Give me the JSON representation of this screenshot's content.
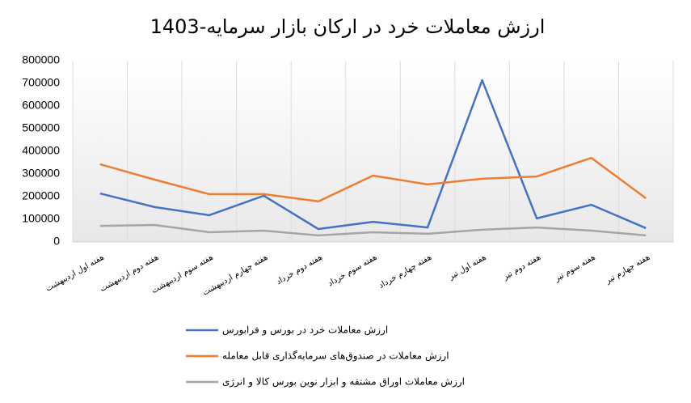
{
  "chart_data": {
    "type": "line",
    "title": "ارزش معاملات خرد در ارکان بازار سرمایه-1403",
    "categories": [
      "هفته اول اردیبهشت",
      "هفته دوم اردیبهشت",
      "هفته سوم اردیبهشت",
      "هفته چهارم اردیبهشت",
      "هفته دوم خرداد",
      "هفته سوم خرداد",
      "هفته چهارم خرداد",
      "هفته اول تیر",
      "هفته دوم تیر",
      "هفته سوم تیر",
      "هفته چهارم تیر"
    ],
    "series": [
      {
        "name": "ارزش معاملات خرد در بورس و فرابورس",
        "color": "#4472c4",
        "values": [
          214000,
          154000,
          118000,
          204000,
          57000,
          89000,
          64000,
          714000,
          104000,
          164000,
          61000
        ]
      },
      {
        "name": "ارزش معاملات در صندوق‌های سرمایه‌گذاری قابل معامله",
        "color": "#ed7d31",
        "values": [
          343000,
          275000,
          211000,
          211000,
          179000,
          293000,
          254000,
          279000,
          289000,
          371000,
          193000
        ]
      },
      {
        "name": "ارزش معاملات اوراق مشتقه و ابزار نوین بورس کالا و انرژی",
        "color": "#a5a5a5",
        "values": [
          71000,
          75000,
          43000,
          50000,
          29000,
          43000,
          36000,
          54000,
          64000,
          50000,
          29000
        ]
      }
    ],
    "ylim": [
      0,
      800000
    ],
    "yticks": [
      0,
      100000,
      200000,
      300000,
      400000,
      500000,
      600000,
      700000,
      800000
    ],
    "grid": false
  }
}
